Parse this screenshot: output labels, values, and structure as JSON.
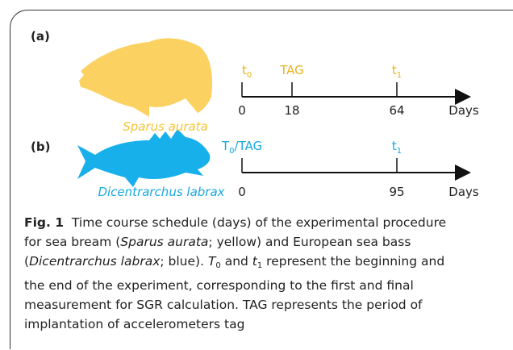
{
  "figure": {
    "panels": [
      {
        "label": "(a)",
        "species": "Sparus aurata",
        "color": "#fbd262",
        "text_color": "#f5c435",
        "marker_color": "#e9b41c",
        "markers": [
          {
            "main": "t",
            "sub": "0"
          },
          {
            "main": "TAG"
          },
          {
            "main": "t",
            "sub": "1"
          }
        ],
        "ticks": [
          "0",
          "18",
          "64"
        ],
        "unit": "Days"
      },
      {
        "label": "(b)",
        "species": "Dicentrarchus labrax",
        "color": "#17b0ea",
        "text_color": "#1aa8e0",
        "marker_color": "#1aa8e0",
        "markers": [
          {
            "main": "T",
            "sub": "0",
            "after": "/TAG"
          },
          {
            "main": "t",
            "sub": "1"
          }
        ],
        "ticks": [
          "0",
          "95"
        ],
        "unit": "Days"
      }
    ],
    "caption": [
      [
        {
          "text": "Fig. 1",
          "style": "bold"
        },
        {
          "text": "  Time course schedule (days) of the experimental procedure"
        }
      ],
      [
        {
          "text": "for sea bream ("
        },
        {
          "text": "Sparus aurata",
          "style": "italic"
        },
        {
          "text": "; yellow) and European sea bass"
        }
      ],
      [
        {
          "text": "("
        },
        {
          "text": "Dicentrarchus labrax",
          "style": "italic"
        },
        {
          "text": "; blue). "
        },
        {
          "text": "T",
          "style": "italic"
        },
        {
          "text": "0",
          "style": "sub"
        },
        {
          "text": " and "
        },
        {
          "text": "t",
          "style": "italic"
        },
        {
          "text": "1",
          "style": "sub"
        },
        {
          "text": " represent the beginning and"
        }
      ],
      [
        {
          "text": "the end of the experiment, corresponding to the first and final"
        }
      ],
      [
        {
          "text": "measurement for SGR calculation. TAG represents the period of"
        }
      ],
      [
        {
          "text": "implantation of accelerometers tag"
        }
      ]
    ]
  }
}
